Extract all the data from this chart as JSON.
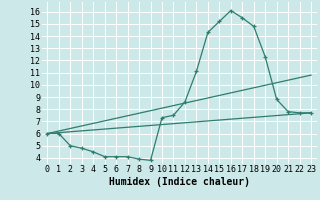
{
  "xlabel": "Humidex (Indice chaleur)",
  "bg_color": "#cce8e8",
  "grid_color": "#ffffff",
  "line_color": "#2e7d6e",
  "xlim": [
    -0.5,
    23.5
  ],
  "ylim": [
    3.5,
    16.8
  ],
  "xticks": [
    0,
    1,
    2,
    3,
    4,
    5,
    6,
    7,
    8,
    9,
    10,
    11,
    12,
    13,
    14,
    15,
    16,
    17,
    18,
    19,
    20,
    21,
    22,
    23
  ],
  "yticks": [
    4,
    5,
    6,
    7,
    8,
    9,
    10,
    11,
    12,
    13,
    14,
    15,
    16
  ],
  "line1_x": [
    0,
    1,
    2,
    3,
    4,
    5,
    6,
    7,
    8,
    9,
    10,
    11,
    12,
    13,
    14,
    15,
    16,
    17,
    18,
    19,
    20,
    21,
    22,
    23
  ],
  "line1_y": [
    6.0,
    6.0,
    5.0,
    4.8,
    4.5,
    4.1,
    4.1,
    4.1,
    3.9,
    3.8,
    7.3,
    7.5,
    8.6,
    11.1,
    14.3,
    15.2,
    16.1,
    15.5,
    14.8,
    12.3,
    8.8,
    7.8,
    7.7,
    7.7
  ],
  "line2_x": [
    0,
    23
  ],
  "line2_y": [
    6.0,
    10.8
  ],
  "line3_x": [
    0,
    23
  ],
  "line3_y": [
    6.0,
    7.7
  ],
  "font_size": 6.5
}
